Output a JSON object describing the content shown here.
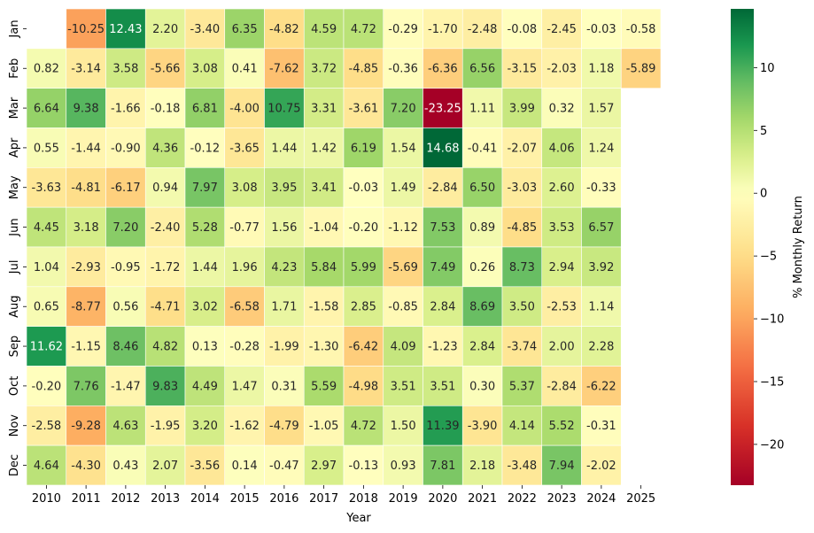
{
  "chart_data": {
    "type": "heatmap",
    "title": "",
    "xlabel": "Year",
    "ylabel": "",
    "colorbar_label": "% Monthly Return",
    "colorbar_range": [
      -23.25,
      14.68
    ],
    "colorbar_ticks": [
      -20,
      -15,
      -10,
      -5,
      0,
      5,
      10
    ],
    "colormap": "RdYlGn",
    "x": [
      "2010",
      "2011",
      "2012",
      "2013",
      "2014",
      "2015",
      "2016",
      "2017",
      "2018",
      "2019",
      "2020",
      "2021",
      "2022",
      "2023",
      "2024",
      "2025"
    ],
    "y": [
      "Jan",
      "Feb",
      "Mar",
      "Apr",
      "May",
      "Jun",
      "Jul",
      "Aug",
      "Sep",
      "Oct",
      "Nov",
      "Dec"
    ],
    "values": [
      [
        null,
        -10.25,
        12.43,
        2.2,
        -3.4,
        6.35,
        -4.82,
        4.59,
        4.72,
        -0.29,
        -1.7,
        -2.48,
        -0.08,
        -2.45,
        -0.03,
        -0.58
      ],
      [
        0.82,
        -3.14,
        3.58,
        -5.66,
        3.08,
        0.41,
        -7.62,
        3.72,
        -4.85,
        -0.36,
        -6.36,
        6.56,
        -3.15,
        -2.03,
        1.18,
        -5.89
      ],
      [
        6.64,
        9.38,
        -1.66,
        -0.18,
        6.81,
        -4.0,
        10.75,
        3.31,
        -3.61,
        7.2,
        -23.25,
        1.11,
        3.99,
        0.32,
        1.57,
        null
      ],
      [
        0.55,
        -1.44,
        -0.9,
        4.36,
        -0.12,
        -3.65,
        1.44,
        1.42,
        6.19,
        1.54,
        14.68,
        -0.41,
        -2.07,
        4.06,
        1.24,
        null
      ],
      [
        -3.63,
        -4.81,
        -6.17,
        0.94,
        7.97,
        3.08,
        3.95,
        3.41,
        -0.03,
        1.49,
        -2.84,
        6.5,
        -3.03,
        2.6,
        -0.33,
        null
      ],
      [
        4.45,
        3.18,
        7.2,
        -2.4,
        5.28,
        -0.77,
        1.56,
        -1.04,
        -0.2,
        -1.12,
        7.53,
        0.89,
        -4.85,
        3.53,
        6.57,
        null
      ],
      [
        1.04,
        -2.93,
        -0.95,
        -1.72,
        1.44,
        1.96,
        4.23,
        5.84,
        5.99,
        -5.69,
        7.49,
        0.26,
        8.73,
        2.94,
        3.92,
        null
      ],
      [
        0.65,
        -8.77,
        0.56,
        -4.71,
        3.02,
        -6.58,
        1.71,
        -1.58,
        2.85,
        -0.85,
        2.84,
        8.69,
        3.5,
        -2.53,
        1.14,
        null
      ],
      [
        11.62,
        -1.15,
        8.46,
        4.82,
        0.13,
        -0.28,
        -1.99,
        -1.3,
        -6.42,
        4.09,
        -1.23,
        2.84,
        -3.74,
        2.0,
        2.28,
        null
      ],
      [
        -0.2,
        7.76,
        -1.47,
        9.83,
        4.49,
        1.47,
        0.31,
        5.59,
        -4.98,
        3.51,
        3.51,
        0.3,
        5.37,
        -2.84,
        -6.22,
        null
      ],
      [
        -2.58,
        -9.28,
        4.63,
        -1.95,
        3.2,
        -1.62,
        -4.79,
        -1.05,
        4.72,
        1.5,
        11.39,
        -3.9,
        4.14,
        5.52,
        -0.31,
        null
      ],
      [
        4.64,
        -4.3,
        0.43,
        2.07,
        -3.56,
        0.14,
        -0.47,
        2.97,
        -0.13,
        0.93,
        7.81,
        2.18,
        -3.48,
        7.94,
        -2.02,
        null
      ]
    ],
    "grid": false,
    "legend": "colorbar right"
  }
}
